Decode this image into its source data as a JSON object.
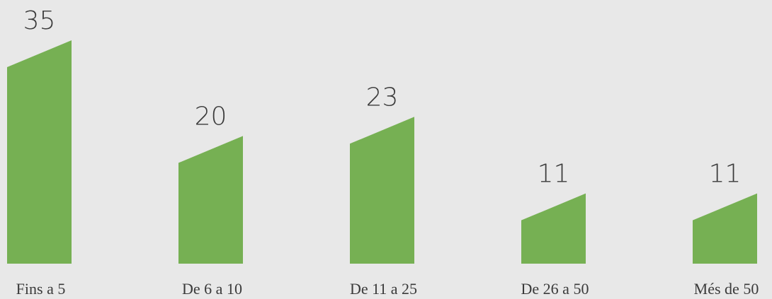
{
  "chart_data": {
    "type": "bar",
    "categories": [
      "Fins a 5",
      "De 6 a 10",
      "De 11 a 25",
      "De 26 a 50",
      "Més de 50"
    ],
    "values": [
      35,
      20,
      23,
      11,
      11
    ],
    "color": "#76b053"
  }
}
